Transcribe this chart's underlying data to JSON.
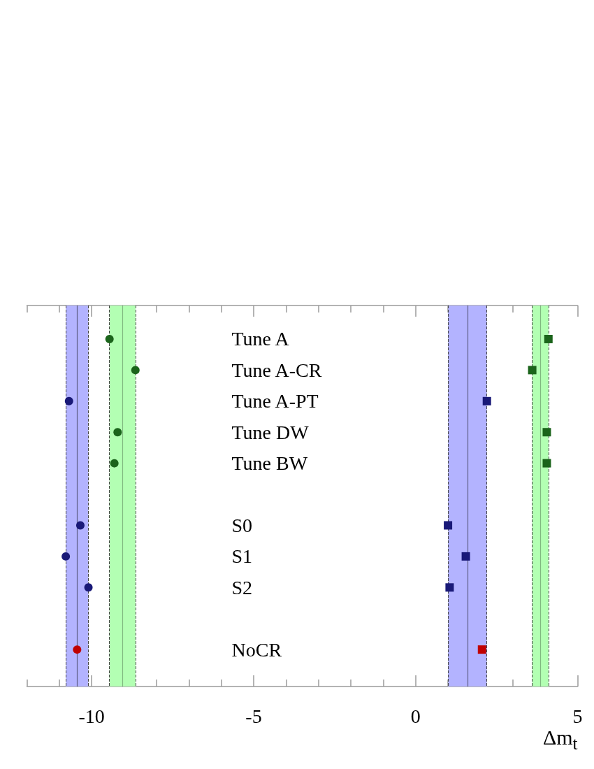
{
  "chart_data": {
    "type": "scatter",
    "orientation": "horizontal",
    "xlabel": "Δm$_{t}$",
    "categories": [
      "Tune A",
      "Tune A-CR",
      "Tune A-PT",
      "Tune DW",
      "Tune BW",
      null,
      "S0",
      "S1",
      "S2",
      null,
      "NoCR"
    ],
    "series": [
      {
        "marker": "circle",
        "values": [
          -9.45,
          -8.65,
          -10.7,
          -9.2,
          -9.3,
          null,
          -10.35,
          -10.8,
          -10.1,
          null,
          -10.45
        ],
        "colors": [
          "#1b641b",
          "#1b641b",
          "#191978",
          "#1b641b",
          "#1b641b",
          null,
          "#191978",
          "#191978",
          "#191978",
          null,
          "#c00000"
        ]
      },
      {
        "marker": "square",
        "values": [
          4.1,
          3.6,
          2.2,
          4.05,
          4.05,
          null,
          1.0,
          1.55,
          1.05,
          null,
          2.05
        ],
        "colors": [
          "#1b641b",
          "#1b641b",
          "#191978",
          "#1b641b",
          "#1b641b",
          null,
          "#191978",
          "#191978",
          "#191978",
          null,
          "#c00000"
        ]
      }
    ],
    "xlim": [
      -12,
      5
    ],
    "xticks": [
      {
        "value": -12,
        "label": null
      },
      {
        "value": -11,
        "label": null
      },
      -10,
      {
        "value": -9,
        "label": null
      },
      {
        "value": -8,
        "label": null
      },
      {
        "value": -7,
        "label": null
      },
      {
        "value": -6,
        "label": null
      },
      -5,
      {
        "value": -4,
        "label": null
      },
      {
        "value": -3,
        "label": null
      },
      {
        "value": -2,
        "label": null
      },
      {
        "value": -1,
        "label": null
      },
      0,
      {
        "value": 1,
        "label": null
      },
      {
        "value": 2,
        "label": null
      },
      {
        "value": 3,
        "label": null
      },
      {
        "value": 4,
        "label": null
      },
      5
    ],
    "bands": [
      {
        "axis": "x",
        "from": -10.8,
        "to": -10.1,
        "color": "#b3b3ff"
      },
      {
        "axis": "x",
        "from": -9.45,
        "to": -8.65,
        "color": "#b3ffb3"
      },
      {
        "axis": "x",
        "from": 1.0,
        "to": 2.2,
        "color": "#b3b3ff"
      },
      {
        "axis": "x",
        "from": 3.6,
        "to": 4.1,
        "color": "#b3ffb3"
      }
    ],
    "ref_lines": [
      {
        "axis": "x",
        "value": -10.45,
        "color": "#606088"
      },
      {
        "axis": "x",
        "value": -9.05,
        "color": "#80b880"
      },
      {
        "axis": "x",
        "value": 1.6,
        "color": "#606088"
      },
      {
        "axis": "x",
        "value": 3.85,
        "color": "#80b880"
      }
    ]
  }
}
